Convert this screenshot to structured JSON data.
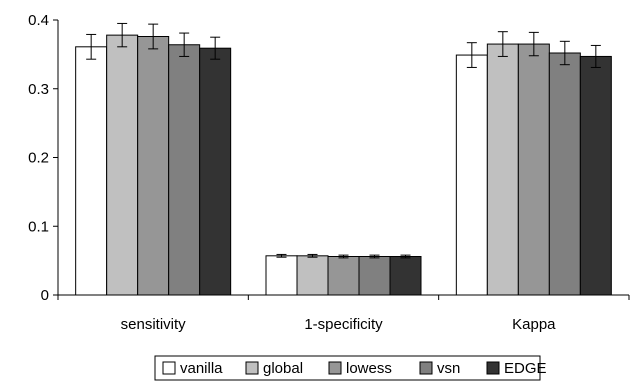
{
  "chart_data": {
    "type": "bar",
    "categories": [
      "sensitivity",
      "1-specificity",
      "Kappa"
    ],
    "series": [
      {
        "name": "vanilla",
        "color": "#ffffff",
        "values": [
          0.361,
          0.057,
          0.349
        ],
        "error": [
          0.018,
          0.002,
          0.018
        ]
      },
      {
        "name": "global",
        "color": "#c0c0c0",
        "values": [
          0.378,
          0.057,
          0.365
        ],
        "error": [
          0.017,
          0.002,
          0.018
        ]
      },
      {
        "name": "lowess",
        "color": "#969696",
        "values": [
          0.376,
          0.056,
          0.365
        ],
        "error": [
          0.018,
          0.002,
          0.017
        ]
      },
      {
        "name": "vsn",
        "color": "#808080",
        "values": [
          0.364,
          0.056,
          0.352
        ],
        "error": [
          0.017,
          0.002,
          0.017
        ]
      },
      {
        "name": "EDGE",
        "color": "#333333",
        "values": [
          0.359,
          0.056,
          0.347
        ],
        "error": [
          0.016,
          0.002,
          0.016
        ]
      }
    ],
    "ylim": [
      0,
      0.4
    ],
    "yticks": [
      "0",
      "0.1",
      "0.2",
      "0.3",
      "0.4"
    ],
    "title": "",
    "xlabel": "",
    "ylabel": "",
    "grid": false,
    "legend_position": "bottom"
  }
}
